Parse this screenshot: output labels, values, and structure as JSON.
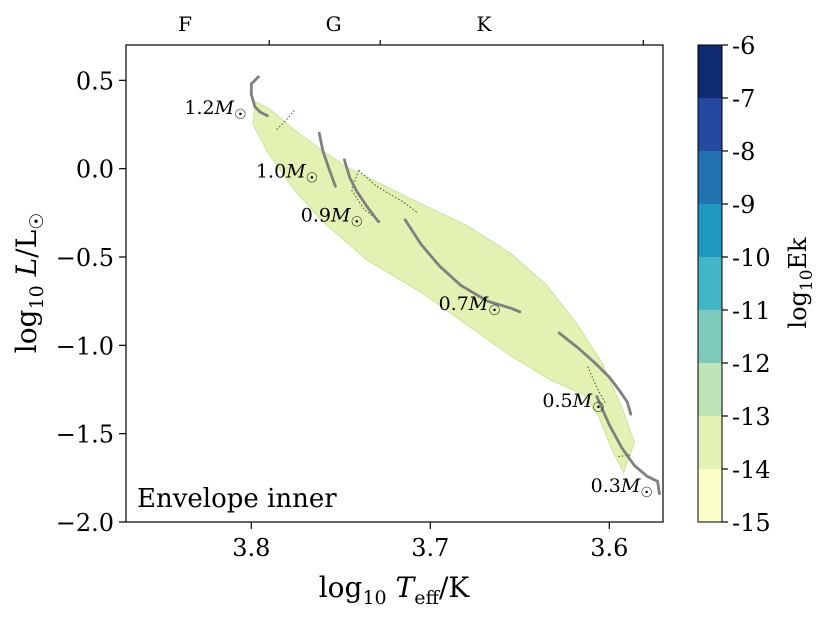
{
  "chart_data": {
    "type": "contour",
    "panel_label": "Envelope inner",
    "xlabel": "log10 Teff/K",
    "ylabel": "log10 L/L☉",
    "xlim": [
      3.87,
      3.57
    ],
    "ylim": [
      -2.0,
      0.7
    ],
    "x_ticks": [
      {
        "value": 3.8,
        "label": "3.8"
      },
      {
        "value": 3.7,
        "label": "3.7"
      },
      {
        "value": 3.6,
        "label": "3.6"
      }
    ],
    "y_ticks": [
      {
        "value": 0.5,
        "label": "0.5"
      },
      {
        "value": 0.0,
        "label": "0.0"
      },
      {
        "value": -0.5,
        "label": "−0.5"
      },
      {
        "value": -1.0,
        "label": "−1.0"
      },
      {
        "value": -1.5,
        "label": "−1.5"
      },
      {
        "value": -2.0,
        "label": "−2.0"
      }
    ],
    "spectral_types": [
      {
        "label": "F",
        "center": 3.837
      },
      {
        "label": "G",
        "center": 3.754
      },
      {
        "label": "K",
        "center": 3.67
      }
    ],
    "spectral_boundaries": [
      3.79,
      3.728,
      3.581
    ],
    "region_outline": [
      [
        3.798,
        0.38
      ],
      [
        3.79,
        0.34
      ],
      [
        3.776,
        0.22
      ],
      [
        3.76,
        0.1
      ],
      [
        3.745,
        0.0
      ],
      [
        3.725,
        -0.1
      ],
      [
        3.705,
        -0.2
      ],
      [
        3.68,
        -0.32
      ],
      [
        3.655,
        -0.48
      ],
      [
        3.635,
        -0.66
      ],
      [
        3.618,
        -0.88
      ],
      [
        3.604,
        -1.1
      ],
      [
        3.593,
        -1.35
      ],
      [
        3.586,
        -1.55
      ],
      [
        3.592,
        -1.72
      ],
      [
        3.599,
        -1.58
      ],
      [
        3.606,
        -1.4
      ],
      [
        3.614,
        -1.28
      ],
      [
        3.632,
        -1.2
      ],
      [
        3.655,
        -1.06
      ],
      [
        3.68,
        -0.88
      ],
      [
        3.705,
        -0.7
      ],
      [
        3.735,
        -0.52
      ],
      [
        3.76,
        -0.3
      ],
      [
        3.776,
        -0.12
      ],
      [
        3.79,
        0.08
      ],
      [
        3.799,
        0.25
      ]
    ],
    "region_level": -14,
    "dotted_contours": [
      [
        [
          3.776,
          0.33
        ],
        [
          3.781,
          0.27
        ],
        [
          3.786,
          0.22
        ]
      ],
      [
        [
          3.74,
          -0.01
        ],
        [
          3.73,
          -0.1
        ],
        [
          3.715,
          -0.19
        ],
        [
          3.707,
          -0.25
        ]
      ],
      [
        [
          3.74,
          -0.01
        ],
        [
          3.744,
          -0.12
        ],
        [
          3.737,
          -0.23
        ],
        [
          3.728,
          -0.3
        ]
      ],
      [
        [
          3.612,
          -1.12
        ],
        [
          3.607,
          -1.24
        ],
        [
          3.602,
          -1.33
        ]
      ],
      [
        [
          3.595,
          -1.63
        ],
        [
          3.588,
          -1.62
        ]
      ]
    ],
    "tracks": [
      {
        "label": "1.2M☉",
        "label_pos": [
          3.82,
          0.31
        ],
        "points": [
          [
            3.796,
            0.52
          ],
          [
            3.8,
            0.48
          ],
          [
            3.8,
            0.42
          ],
          [
            3.798,
            0.35
          ],
          [
            3.795,
            0.32
          ],
          [
            3.791,
            0.3
          ]
        ]
      },
      {
        "label": "1.0M☉",
        "label_pos": [
          3.78,
          -0.05
        ],
        "points": [
          [
            3.762,
            0.2
          ],
          [
            3.76,
            0.1
          ],
          [
            3.757,
            0.01
          ],
          [
            3.753,
            -0.1
          ]
        ]
      },
      {
        "label": "0.9M☉",
        "label_pos": [
          3.755,
          -0.3
        ],
        "points": [
          [
            3.748,
            0.05
          ],
          [
            3.745,
            -0.05
          ],
          [
            3.741,
            -0.13
          ],
          [
            3.735,
            -0.22
          ],
          [
            3.729,
            -0.3
          ]
        ]
      },
      {
        "label": "0.7M☉",
        "label_pos": [
          3.678,
          -0.8
        ],
        "points": [
          [
            3.714,
            -0.29
          ],
          [
            3.705,
            -0.43
          ],
          [
            3.695,
            -0.55
          ],
          [
            3.683,
            -0.66
          ],
          [
            3.668,
            -0.75
          ],
          [
            3.655,
            -0.79
          ],
          [
            3.65,
            -0.81
          ]
        ]
      },
      {
        "label": "0.5M☉",
        "label_pos": [
          3.62,
          -1.35
        ],
        "points": [
          [
            3.628,
            -0.93
          ],
          [
            3.618,
            -1.01
          ],
          [
            3.608,
            -1.1
          ],
          [
            3.6,
            -1.18
          ],
          [
            3.594,
            -1.26
          ],
          [
            3.59,
            -1.32
          ],
          [
            3.588,
            -1.39
          ]
        ]
      },
      {
        "label": "0.3M☉",
        "label_pos": [
          3.593,
          -1.83
        ],
        "points": [
          [
            3.607,
            -1.29
          ],
          [
            3.6,
            -1.45
          ],
          [
            3.593,
            -1.58
          ],
          [
            3.586,
            -1.68
          ],
          [
            3.579,
            -1.74
          ],
          [
            3.573,
            -1.77
          ],
          [
            3.572,
            -1.84
          ]
        ]
      }
    ],
    "colorbar": {
      "label": "log10Ek",
      "min": -15,
      "max": -6,
      "levels": [
        {
          "from": -15,
          "to": -14,
          "color": "#fcfec8"
        },
        {
          "from": -14,
          "to": -13,
          "color": "#e3f2b2"
        },
        {
          "from": -13,
          "to": -12,
          "color": "#bee4b8"
        },
        {
          "from": -12,
          "to": -11,
          "color": "#7ccabb"
        },
        {
          "from": -11,
          "to": -10,
          "color": "#41b6c4"
        },
        {
          "from": -10,
          "to": -9,
          "color": "#1f98c0"
        },
        {
          "from": -9,
          "to": -8,
          "color": "#2372b0"
        },
        {
          "from": -8,
          "to": -7,
          "color": "#234aa0"
        },
        {
          "from": -7,
          "to": -6,
          "color": "#102a74"
        }
      ],
      "tick_labels": [
        "-15",
        "-14",
        "-13",
        "-12",
        "-11",
        "-10",
        "-9",
        "-8",
        "-7",
        "-6"
      ]
    },
    "track_color": "#808080",
    "outline_color": "#cfe6a6",
    "region_color": "#e3f2b2",
    "dotted_color": "#2c5d2c"
  }
}
